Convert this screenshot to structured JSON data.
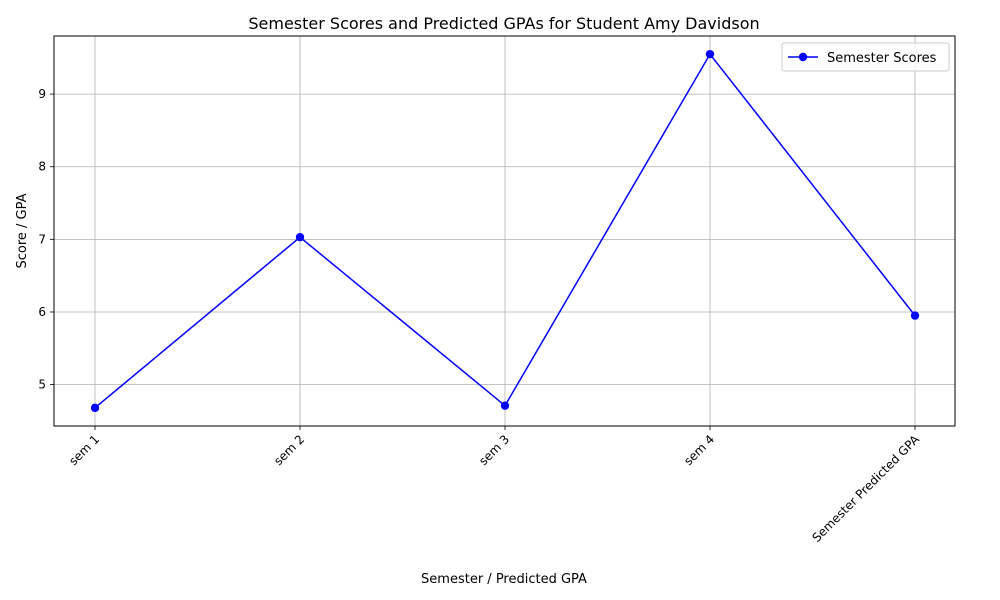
{
  "chart_data": {
    "type": "line",
    "title": "Semester Scores and Predicted GPAs for Student Amy Davidson",
    "xlabel": "Semester / Predicted GPA",
    "ylabel": "Score / GPA",
    "categories": [
      "sem 1",
      "sem 2",
      "sem 3",
      "sem 4",
      "Semester Predicted GPA"
    ],
    "series": [
      {
        "name": "Semester Scores",
        "values": [
          4.68,
          7.03,
          4.71,
          9.55,
          5.95
        ],
        "color": "#0000ff",
        "marker": "circle"
      }
    ],
    "ylim": [
      4.43,
      9.8
    ],
    "yticks": [
      5,
      6,
      7,
      8,
      9
    ],
    "grid": true,
    "legend_position": "top-right",
    "x_tick_rotation": 45
  }
}
